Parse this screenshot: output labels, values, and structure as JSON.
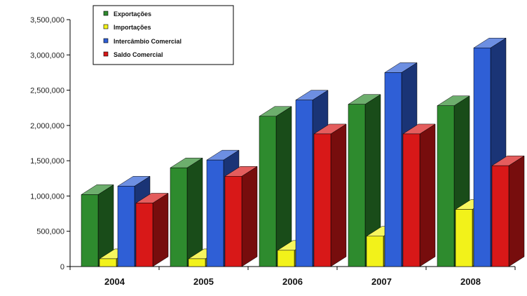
{
  "chart_data": {
    "type": "bar",
    "categories": [
      "2004",
      "2005",
      "2006",
      "2007",
      "2008"
    ],
    "series": [
      {
        "name": "Exportações",
        "values": [
          1020000,
          1400000,
          2130000,
          2300000,
          2280000
        ],
        "color": "#2e8b2e"
      },
      {
        "name": "Importações",
        "values": [
          110000,
          110000,
          230000,
          430000,
          810000
        ],
        "color": "#f2f21a"
      },
      {
        "name": "Intercâmbio Comercial",
        "values": [
          1140000,
          1510000,
          2360000,
          2750000,
          3100000
        ],
        "color": "#2f5fd6"
      },
      {
        "name": "Saldo Comercial",
        "values": [
          900000,
          1280000,
          1880000,
          1880000,
          1430000
        ],
        "color": "#d81818"
      }
    ],
    "yticks": [
      "0",
      "500,000",
      "1,000,000",
      "1,500,000",
      "2,000,000",
      "2,500,000",
      "3,000,000",
      "3,500,000"
    ],
    "ylim": [
      0,
      3500000
    ],
    "legend_position": "top-left",
    "grid": false
  }
}
